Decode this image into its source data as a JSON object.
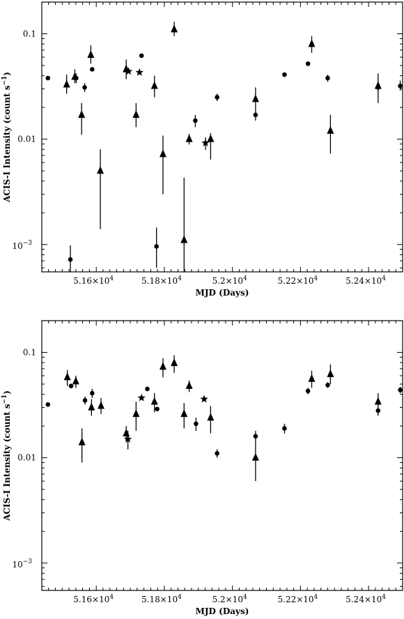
{
  "chart_data": [
    {
      "type": "scatter",
      "xlabel": "MJD (Days)",
      "ylabel": "ACIS-I Intensity (count s^-1)",
      "ylabel_main": "ACIS-I Intensity (count s",
      "ylabel_sup": "−1",
      "ylabel_end": ")",
      "yscale": "log",
      "xlim": [
        51440,
        52500
      ],
      "ylim": [
        0.00055,
        0.2
      ],
      "x_tick_labels": [
        "5.16×10",
        "5.18×10",
        "5.2×10",
        "5.22×10",
        "5.24×10"
      ],
      "x_tick_exp": "4",
      "x_tick_values": [
        51600,
        51800,
        52000,
        52200,
        52400
      ],
      "y_tick_labels": [
        "0.1",
        "0.01"
      ],
      "y_tick_values": [
        0.1,
        0.01
      ],
      "y_tick_pow_base": "10",
      "y_tick_pow_exp": "−3",
      "series": [
        {
          "marker": "circle",
          "points": [
            {
              "x": 51458,
              "y": 0.038,
              "lo": 0.038,
              "hi": 0.038
            },
            {
              "x": 51524,
              "y": 0.00072,
              "lo": 0.00052,
              "hi": 0.00098
            },
            {
              "x": 51541,
              "y": 0.038,
              "lo": 0.034,
              "hi": 0.042
            },
            {
              "x": 51566,
              "y": 0.031,
              "lo": 0.028,
              "hi": 0.034
            },
            {
              "x": 51588,
              "y": 0.046,
              "lo": 0.046,
              "hi": 0.046
            },
            {
              "x": 51733,
              "y": 0.062,
              "lo": 0.062,
              "hi": 0.062
            },
            {
              "x": 51777,
              "y": 0.00096,
              "lo": 0.0006,
              "hi": 0.00145
            },
            {
              "x": 51891,
              "y": 0.015,
              "lo": 0.013,
              "hi": 0.017
            },
            {
              "x": 51955,
              "y": 0.025,
              "lo": 0.023,
              "hi": 0.027
            },
            {
              "x": 52068,
              "y": 0.017,
              "lo": 0.015,
              "hi": 0.019
            },
            {
              "x": 52153,
              "y": 0.041,
              "lo": 0.041,
              "hi": 0.041
            },
            {
              "x": 52222,
              "y": 0.052,
              "lo": 0.052,
              "hi": 0.052
            },
            {
              "x": 52280,
              "y": 0.038,
              "lo": 0.035,
              "hi": 0.041
            },
            {
              "x": 52428,
              "y": 0.031,
              "lo": 0.029,
              "hi": 0.033
            },
            {
              "x": 52493,
              "y": 0.032,
              "lo": 0.029,
              "hi": 0.036
            }
          ]
        },
        {
          "marker": "triangle",
          "points": [
            {
              "x": 51513,
              "y": 0.033,
              "lo": 0.027,
              "hi": 0.041
            },
            {
              "x": 51537,
              "y": 0.039,
              "lo": 0.034,
              "hi": 0.046
            },
            {
              "x": 51557,
              "y": 0.017,
              "lo": 0.011,
              "hi": 0.022
            },
            {
              "x": 51584,
              "y": 0.063,
              "lo": 0.052,
              "hi": 0.078
            },
            {
              "x": 51612,
              "y": 0.005,
              "lo": 0.0014,
              "hi": 0.008
            },
            {
              "x": 51688,
              "y": 0.046,
              "lo": 0.037,
              "hi": 0.057
            },
            {
              "x": 51717,
              "y": 0.017,
              "lo": 0.013,
              "hi": 0.022
            },
            {
              "x": 51771,
              "y": 0.032,
              "lo": 0.025,
              "hi": 0.04
            },
            {
              "x": 51796,
              "y": 0.0072,
              "lo": 0.003,
              "hi": 0.0108
            },
            {
              "x": 51829,
              "y": 0.11,
              "lo": 0.095,
              "hi": 0.13
            },
            {
              "x": 51858,
              "y": 0.0011,
              "lo": 0.00055,
              "hi": 0.0043
            },
            {
              "x": 51873,
              "y": 0.01,
              "lo": 0.0089,
              "hi": 0.0112
            },
            {
              "x": 51936,
              "y": 0.01,
              "lo": 0.0064,
              "hi": 0.0114
            },
            {
              "x": 52068,
              "y": 0.024,
              "lo": 0.019,
              "hi": 0.031
            },
            {
              "x": 52233,
              "y": 0.08,
              "lo": 0.066,
              "hi": 0.095
            },
            {
              "x": 52288,
              "y": 0.012,
              "lo": 0.0073,
              "hi": 0.017
            },
            {
              "x": 52428,
              "y": 0.032,
              "lo": 0.022,
              "hi": 0.042
            }
          ]
        },
        {
          "marker": "star",
          "points": [
            {
              "x": 51695,
              "y": 0.044,
              "lo": 0.044,
              "hi": 0.044
            },
            {
              "x": 51727,
              "y": 0.043,
              "lo": 0.043,
              "hi": 0.043
            },
            {
              "x": 51921,
              "y": 0.0092,
              "lo": 0.0079,
              "hi": 0.0104
            }
          ]
        }
      ]
    },
    {
      "type": "scatter",
      "xlabel": "MJD (Days)",
      "ylabel": "ACIS-I Intensity (count s^-1)",
      "ylabel_main": "ACIS-I Intensity (count s",
      "ylabel_sup": "−1",
      "ylabel_end": ")",
      "yscale": "log",
      "xlim": [
        51440,
        52500
      ],
      "ylim": [
        0.00055,
        0.2
      ],
      "x_tick_labels": [
        "5.16×10",
        "5.18×10",
        "5.2×10",
        "5.22×10",
        "5.24×10"
      ],
      "x_tick_exp": "4",
      "x_tick_values": [
        51600,
        51800,
        52000,
        52200,
        52400
      ],
      "y_tick_labels": [
        "0.1",
        "0.01"
      ],
      "y_tick_values": [
        0.1,
        0.01
      ],
      "y_tick_pow_base": "10",
      "y_tick_pow_exp": "−3",
      "series": [
        {
          "marker": "circle",
          "points": [
            {
              "x": 51458,
              "y": 0.032,
              "lo": 0.032,
              "hi": 0.032
            },
            {
              "x": 51526,
              "y": 0.048,
              "lo": 0.048,
              "hi": 0.048
            },
            {
              "x": 51567,
              "y": 0.035,
              "lo": 0.032,
              "hi": 0.038
            },
            {
              "x": 51588,
              "y": 0.041,
              "lo": 0.037,
              "hi": 0.045
            },
            {
              "x": 51750,
              "y": 0.045,
              "lo": 0.045,
              "hi": 0.045
            },
            {
              "x": 51779,
              "y": 0.029,
              "lo": 0.029,
              "hi": 0.029
            },
            {
              "x": 51893,
              "y": 0.021,
              "lo": 0.018,
              "hi": 0.024
            },
            {
              "x": 51955,
              "y": 0.011,
              "lo": 0.01,
              "hi": 0.012
            },
            {
              "x": 52068,
              "y": 0.016,
              "lo": 0.014,
              "hi": 0.018
            },
            {
              "x": 52153,
              "y": 0.019,
              "lo": 0.017,
              "hi": 0.021
            },
            {
              "x": 52222,
              "y": 0.043,
              "lo": 0.04,
              "hi": 0.046
            },
            {
              "x": 52280,
              "y": 0.049,
              "lo": 0.046,
              "hi": 0.052
            },
            {
              "x": 52428,
              "y": 0.028,
              "lo": 0.025,
              "hi": 0.031
            },
            {
              "x": 52493,
              "y": 0.044,
              "lo": 0.041,
              "hi": 0.047
            }
          ]
        },
        {
          "marker": "triangle",
          "points": [
            {
              "x": 51515,
              "y": 0.058,
              "lo": 0.048,
              "hi": 0.068
            },
            {
              "x": 51540,
              "y": 0.053,
              "lo": 0.046,
              "hi": 0.06
            },
            {
              "x": 51558,
              "y": 0.014,
              "lo": 0.009,
              "hi": 0.019
            },
            {
              "x": 51586,
              "y": 0.03,
              "lo": 0.025,
              "hi": 0.036
            },
            {
              "x": 51614,
              "y": 0.031,
              "lo": 0.026,
              "hi": 0.037
            },
            {
              "x": 51688,
              "y": 0.017,
              "lo": 0.014,
              "hi": 0.02
            },
            {
              "x": 51717,
              "y": 0.026,
              "lo": 0.018,
              "hi": 0.034
            },
            {
              "x": 51771,
              "y": 0.034,
              "lo": 0.027,
              "hi": 0.041
            },
            {
              "x": 51796,
              "y": 0.073,
              "lo": 0.058,
              "hi": 0.088
            },
            {
              "x": 51829,
              "y": 0.079,
              "lo": 0.064,
              "hi": 0.094
            },
            {
              "x": 51858,
              "y": 0.026,
              "lo": 0.019,
              "hi": 0.033
            },
            {
              "x": 51873,
              "y": 0.048,
              "lo": 0.042,
              "hi": 0.054
            },
            {
              "x": 51936,
              "y": 0.024,
              "lo": 0.017,
              "hi": 0.031
            },
            {
              "x": 52068,
              "y": 0.01,
              "lo": 0.006,
              "hi": 0.014
            },
            {
              "x": 52233,
              "y": 0.056,
              "lo": 0.046,
              "hi": 0.067
            },
            {
              "x": 52288,
              "y": 0.062,
              "lo": 0.05,
              "hi": 0.077
            },
            {
              "x": 52428,
              "y": 0.034,
              "lo": 0.028,
              "hi": 0.041
            }
          ]
        },
        {
          "marker": "star",
          "points": [
            {
              "x": 51693,
              "y": 0.015,
              "lo": 0.012,
              "hi": 0.018
            },
            {
              "x": 51733,
              "y": 0.037,
              "lo": 0.037,
              "hi": 0.037
            },
            {
              "x": 51917,
              "y": 0.036,
              "lo": 0.036,
              "hi": 0.036
            }
          ]
        }
      ]
    }
  ]
}
